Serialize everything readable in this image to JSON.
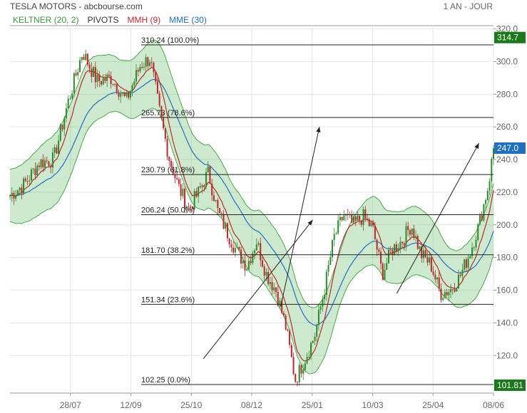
{
  "header": {
    "title": "TESLA MOTORS - abcbourse.com",
    "period": "1 AN - JOUR"
  },
  "legend": [
    {
      "label": "KELTNER (20, 2)",
      "color": "#3a9a3a"
    },
    {
      "label": "PIVOTS",
      "color": "#333333"
    },
    {
      "label": "MMH (9)",
      "color": "#c0282d"
    },
    {
      "label": "MME (30)",
      "color": "#1f6fc4"
    }
  ],
  "chart_data": {
    "type": "line",
    "title": "TESLA MOTORS - abcbourse.com",
    "ylim": [
      97,
      322
    ],
    "y_ticks": [
      120,
      140,
      160,
      180,
      200,
      220,
      240,
      260,
      280,
      300,
      320
    ],
    "y_tick_labels": [
      "120.0",
      "140.0",
      "160.0",
      "180.0",
      "200.0",
      "220.0",
      "240.0",
      "260.0",
      "280.0",
      "300.0",
      "320.0"
    ],
    "x_tick_labels": [
      "28/07",
      "12/09",
      "25/10",
      "08/12",
      "25/01",
      "10/03",
      "25/04",
      "08/06"
    ],
    "x_tick_positions": [
      0.125,
      0.25,
      0.375,
      0.5,
      0.625,
      0.75,
      0.875,
      1.0
    ],
    "fib_levels": [
      {
        "value": 310.24,
        "label": "310.24  (100.0%)"
      },
      {
        "value": 265.73,
        "label": "265.73  (78.6%)"
      },
      {
        "value": 230.79,
        "label": "230.79  (61.8%)"
      },
      {
        "value": 206.24,
        "label": "206.24  (50.0%)"
      },
      {
        "value": 181.7,
        "label": "181.70  (38.2%)"
      },
      {
        "value": 151.34,
        "label": "151.34  (23.6%)"
      },
      {
        "value": 102.25,
        "label": "102.25  (0.0%)"
      }
    ],
    "price_tags": [
      {
        "value": 314.7,
        "label": "314.7",
        "color": "#1a7a1a"
      },
      {
        "value": 247.0,
        "label": "247.0",
        "color": "#1f6fc4"
      },
      {
        "value": 101.81,
        "label": "101.81",
        "color": "#1a7a1a"
      }
    ],
    "close_path": [
      [
        0.0,
        218
      ],
      [
        0.03,
        225
      ],
      [
        0.06,
        238
      ],
      [
        0.09,
        240
      ],
      [
        0.12,
        275
      ],
      [
        0.15,
        306
      ],
      [
        0.18,
        288
      ],
      [
        0.21,
        290
      ],
      [
        0.24,
        276
      ],
      [
        0.27,
        298
      ],
      [
        0.29,
        302
      ],
      [
        0.31,
        268
      ],
      [
        0.33,
        240
      ],
      [
        0.35,
        222
      ],
      [
        0.37,
        210
      ],
      [
        0.39,
        220
      ],
      [
        0.41,
        232
      ],
      [
        0.43,
        208
      ],
      [
        0.45,
        195
      ],
      [
        0.47,
        183
      ],
      [
        0.49,
        175
      ],
      [
        0.51,
        190
      ],
      [
        0.53,
        170
      ],
      [
        0.55,
        160
      ],
      [
        0.57,
        138
      ],
      [
        0.59,
        105
      ],
      [
        0.61,
        118
      ],
      [
        0.63,
        132
      ],
      [
        0.65,
        160
      ],
      [
        0.67,
        192
      ],
      [
        0.69,
        206
      ],
      [
        0.71,
        200
      ],
      [
        0.73,
        205
      ],
      [
        0.75,
        198
      ],
      [
        0.77,
        170
      ],
      [
        0.79,
        185
      ],
      [
        0.81,
        190
      ],
      [
        0.83,
        200
      ],
      [
        0.85,
        182
      ],
      [
        0.87,
        176
      ],
      [
        0.89,
        158
      ],
      [
        0.91,
        160
      ],
      [
        0.93,
        168
      ],
      [
        0.95,
        182
      ],
      [
        0.97,
        200
      ],
      [
        0.99,
        225
      ],
      [
        1.0,
        247
      ]
    ],
    "series": [
      {
        "name": "KELTNER (20, 2)",
        "color": "#3a9a3a"
      },
      {
        "name": "MMH (9)",
        "color": "#c0282d"
      },
      {
        "name": "MME (30)",
        "color": "#1f6fc4"
      }
    ],
    "arrows": [
      {
        "from": [
          0.4,
          118
        ],
        "to": [
          0.626,
          203
        ]
      },
      {
        "from": [
          0.8,
          158
        ],
        "to": [
          0.97,
          250
        ]
      },
      {
        "from": [
          0.56,
          150
        ],
        "to": [
          0.64,
          260
        ]
      }
    ]
  }
}
